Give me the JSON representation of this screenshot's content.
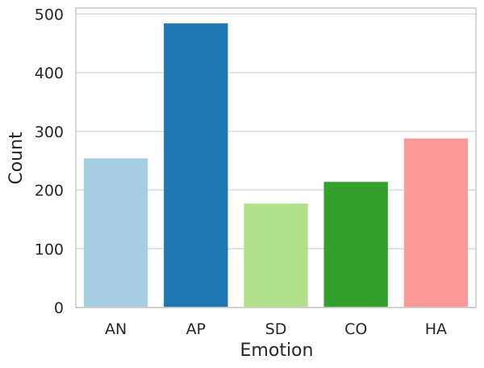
{
  "chart_data": {
    "type": "bar",
    "title": "",
    "xlabel": "Emotion",
    "ylabel": "Count",
    "categories": [
      "AN",
      "AP",
      "SD",
      "CO",
      "HA"
    ],
    "values": [
      254,
      484,
      177,
      214,
      288
    ],
    "ylim": [
      0,
      510
    ],
    "yticks": [
      0,
      100,
      200,
      300,
      400,
      500
    ],
    "grid": true,
    "colors": [
      "#a6cee3",
      "#1f78b4",
      "#b2df8a",
      "#33a02c",
      "#fb9a99"
    ]
  }
}
